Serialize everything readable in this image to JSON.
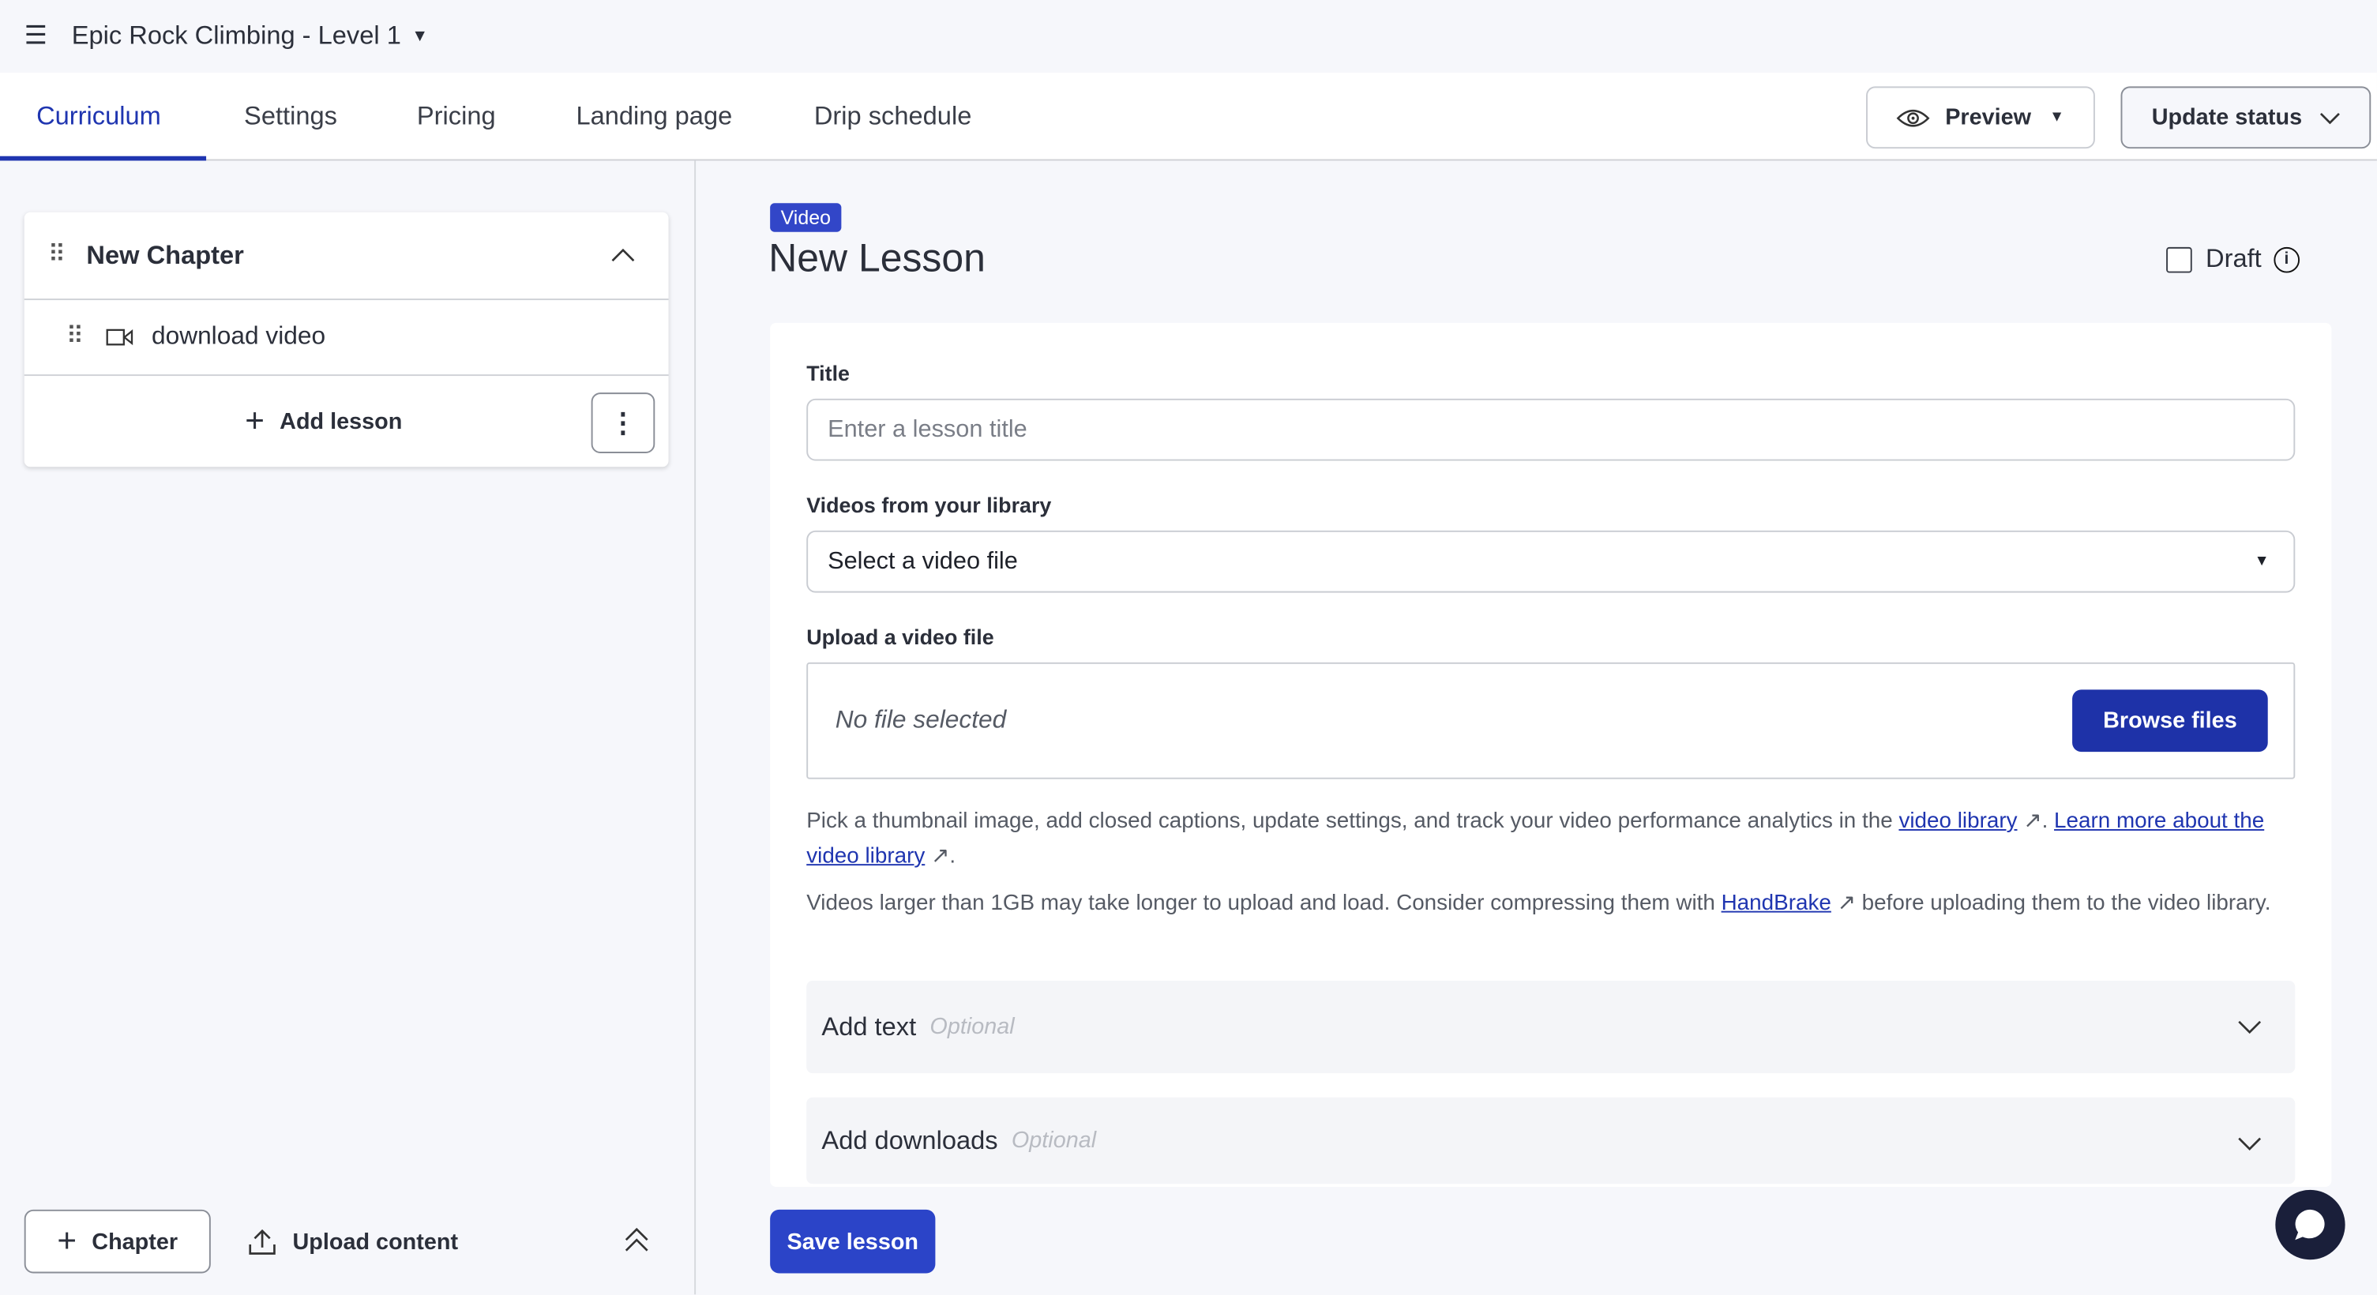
{
  "header": {
    "title": "Epic Rock Climbing - Level 1",
    "menu_icon": "hamburger-icon"
  },
  "tabs": [
    {
      "label": "Curriculum",
      "active": true
    },
    {
      "label": "Settings"
    },
    {
      "label": "Pricing"
    },
    {
      "label": "Landing page"
    },
    {
      "label": "Drip schedule"
    }
  ],
  "toolbar": {
    "preview": "Preview",
    "update_status": "Update status"
  },
  "sidebar": {
    "chapter": "New Chapter",
    "lessons": [
      {
        "title": "download video",
        "icon": "video-camera-icon"
      }
    ],
    "add_lesson": "Add lesson",
    "add_chapter": "Chapter",
    "upload_content": "Upload content"
  },
  "lesson": {
    "badge": "Video",
    "title": "New Lesson",
    "draft_label": "Draft",
    "draft_checked": false,
    "title_label": "Title",
    "title_placeholder": "Enter a lesson title",
    "library_label": "Videos from your library",
    "library_value": "Select a video file",
    "upload_label": "Upload a video file",
    "no_file": "No file selected",
    "browse": "Browse files",
    "help1_pre": "Pick a thumbnail image, add closed captions, update settings, and track your video performance analytics in the ",
    "help1_link1": "video library",
    "help1_mid": ". ",
    "help1_link2": "Learn more about the video library",
    "help1_end": ".",
    "help2_pre": "Videos larger than 1GB may take longer to upload and load. Consider compressing them with ",
    "help2_link": "HandBrake",
    "help2_end": " before uploading them to the video library.",
    "add_text": "Add text",
    "add_downloads": "Add downloads",
    "optional": "Optional",
    "save": "Save lesson"
  },
  "colors": {
    "accent": "#1f35b0",
    "badge": "#3246c8",
    "background": "#f6f7fb"
  }
}
